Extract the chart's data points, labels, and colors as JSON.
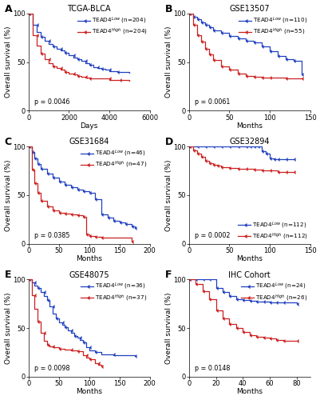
{
  "panels": [
    {
      "label": "A",
      "title": "TCGA-BLCA",
      "xlabel": "Days",
      "ylabel": "Overall survival (%)",
      "xlim": [
        0,
        6000
      ],
      "xticks": [
        0,
        2000,
        4000,
        6000
      ],
      "ylim": [
        0,
        100
      ],
      "yticks": [
        0,
        50,
        100
      ],
      "pvalue": "p = 0.0046",
      "low_label": "TEAD4$^{Low}$ (n=204)",
      "high_label": "TEAD4$^{High}$ (n=204)",
      "low_color": "#2040c0",
      "high_color": "#cc2020",
      "legend_loc": "upper right",
      "legend_bbox": null,
      "low_x": [
        0,
        200,
        400,
        600,
        800,
        1000,
        1200,
        1400,
        1600,
        1800,
        2000,
        2200,
        2400,
        2600,
        2800,
        3000,
        3200,
        3400,
        3600,
        3800,
        4000,
        4400,
        5000
      ],
      "low_y": [
        100,
        88,
        81,
        76,
        72,
        69,
        66,
        64,
        62,
        60,
        57,
        55,
        53,
        51,
        49,
        47,
        45,
        44,
        43,
        42,
        41,
        40,
        39
      ],
      "high_x": [
        0,
        200,
        400,
        600,
        800,
        1000,
        1200,
        1400,
        1600,
        1800,
        2000,
        2200,
        2400,
        2600,
        2800,
        3000,
        3500,
        4000,
        4500,
        5000
      ],
      "high_y": [
        100,
        78,
        67,
        59,
        53,
        49,
        46,
        44,
        42,
        40,
        38,
        37,
        36,
        35,
        34,
        33,
        33,
        32,
        32,
        31
      ]
    },
    {
      "label": "B",
      "title": "GSE13507",
      "xlabel": "Months",
      "ylabel": "Overall survival (%)",
      "xlim": [
        0,
        150
      ],
      "xticks": [
        0,
        50,
        100,
        150
      ],
      "ylim": [
        0,
        100
      ],
      "yticks": [
        0,
        50,
        100
      ],
      "pvalue": "p = 0.0061",
      "low_label": "TEAD4$^{Low}$ (n=110)",
      "high_label": "TEAD4$^{High}$ (n=55)",
      "low_color": "#2040c0",
      "high_color": "#cc2020",
      "legend_loc": "upper right",
      "legend_bbox": null,
      "low_x": [
        0,
        5,
        10,
        15,
        20,
        25,
        30,
        40,
        50,
        60,
        70,
        80,
        90,
        100,
        110,
        120,
        130,
        140
      ],
      "low_y": [
        100,
        97,
        94,
        91,
        88,
        86,
        83,
        80,
        77,
        74,
        72,
        70,
        66,
        61,
        56,
        53,
        51,
        37
      ],
      "high_x": [
        0,
        5,
        10,
        15,
        20,
        25,
        30,
        40,
        50,
        60,
        70,
        80,
        90,
        100,
        120,
        140
      ],
      "high_y": [
        100,
        88,
        78,
        71,
        64,
        58,
        52,
        46,
        42,
        38,
        36,
        35,
        34,
        34,
        33,
        33
      ]
    },
    {
      "label": "C",
      "title": "GSE31684",
      "xlabel": "Months",
      "ylabel": "Overall survival (%)",
      "xlim": [
        0,
        200
      ],
      "xticks": [
        0,
        50,
        100,
        150,
        200
      ],
      "ylim": [
        0,
        100
      ],
      "yticks": [
        0,
        50,
        100
      ],
      "pvalue": "p = 0.0385",
      "low_label": "TEAD4$^{Low}$ (n=46)",
      "high_label": "TEAD4$^{High}$ (n=47)",
      "low_color": "#2040c0",
      "high_color": "#cc2020",
      "legend_loc": "upper right",
      "legend_bbox": null,
      "low_x": [
        0,
        5,
        10,
        15,
        20,
        30,
        40,
        50,
        60,
        70,
        80,
        90,
        100,
        110,
        120,
        130,
        140,
        150,
        160,
        170,
        175
      ],
      "low_y": [
        100,
        94,
        88,
        82,
        77,
        72,
        68,
        64,
        61,
        58,
        56,
        54,
        52,
        46,
        30,
        27,
        24,
        22,
        20,
        18,
        16
      ],
      "high_x": [
        0,
        5,
        10,
        15,
        20,
        30,
        40,
        50,
        60,
        70,
        80,
        90,
        95,
        100,
        110,
        120,
        170
      ],
      "high_y": [
        100,
        76,
        62,
        52,
        44,
        38,
        34,
        32,
        31,
        30,
        29,
        28,
        10,
        8,
        7,
        6,
        2
      ]
    },
    {
      "label": "D",
      "title": "GSE32894",
      "xlabel": "Months",
      "ylabel": "Overall survival (%)",
      "xlim": [
        0,
        150
      ],
      "xticks": [
        0,
        50,
        100,
        150
      ],
      "ylim": [
        0,
        100
      ],
      "yticks": [
        0,
        50,
        100
      ],
      "pvalue": "p = 0.0002",
      "low_label": "TEAD4$^{Low}$ (n=112)",
      "high_label": "TEAD4$^{High}$ (n=112)",
      "low_color": "#2040c0",
      "high_color": "#cc2020",
      "legend_loc": "lower right",
      "legend_bbox": null,
      "low_x": [
        0,
        10,
        20,
        30,
        40,
        50,
        60,
        70,
        75,
        80,
        85,
        90,
        95,
        100,
        105,
        110,
        120,
        130
      ],
      "low_y": [
        100,
        100,
        100,
        100,
        100,
        100,
        100,
        100,
        100,
        100,
        100,
        95,
        93,
        88,
        87,
        87,
        87,
        87
      ],
      "high_x": [
        0,
        5,
        10,
        15,
        20,
        25,
        30,
        35,
        40,
        50,
        60,
        70,
        80,
        90,
        100,
        110,
        120,
        130
      ],
      "high_y": [
        100,
        96,
        93,
        89,
        85,
        83,
        81,
        80,
        79,
        78,
        77,
        77,
        76,
        75,
        75,
        74,
        74,
        74
      ]
    },
    {
      "label": "E",
      "title": "GSE48075",
      "xlabel": "Months",
      "ylabel": "Overall survival (%)",
      "xlim": [
        0,
        200
      ],
      "xticks": [
        0,
        50,
        100,
        150,
        200
      ],
      "ylim": [
        0,
        100
      ],
      "yticks": [
        0,
        50,
        100
      ],
      "pvalue": "p = 0.0098",
      "low_label": "TEAD4$^{Low}$ (n=36)",
      "high_label": "TEAD4$^{High}$ (n=37)",
      "low_color": "#2040c0",
      "high_color": "#cc2020",
      "legend_loc": "upper right",
      "legend_bbox": null,
      "low_x": [
        0,
        5,
        10,
        15,
        20,
        25,
        30,
        35,
        40,
        45,
        50,
        55,
        60,
        65,
        70,
        75,
        80,
        85,
        90,
        95,
        100,
        110,
        120,
        140,
        175
      ],
      "low_y": [
        100,
        97,
        94,
        91,
        87,
        83,
        79,
        72,
        65,
        60,
        56,
        53,
        51,
        48,
        45,
        42,
        40,
        38,
        35,
        30,
        27,
        25,
        23,
        22,
        21
      ],
      "high_x": [
        0,
        5,
        10,
        15,
        20,
        25,
        30,
        35,
        40,
        50,
        60,
        70,
        80,
        90,
        95,
        100,
        110,
        115,
        120
      ],
      "high_y": [
        100,
        84,
        70,
        57,
        45,
        37,
        33,
        31,
        30,
        29,
        28,
        27,
        26,
        22,
        20,
        18,
        14,
        12,
        11
      ]
    },
    {
      "label": "F",
      "title": "IHC Cohort",
      "xlabel": "Months",
      "ylabel": "Overall survival (%)",
      "xlim": [
        0,
        90
      ],
      "xticks": [
        0,
        20,
        40,
        60,
        80
      ],
      "ylim": [
        0,
        100
      ],
      "yticks": [
        0,
        50,
        100
      ],
      "pvalue": "p = 0.0148",
      "low_label": "TEAD4$^{Low}$ (n=24)",
      "high_label": "TEAD4$^{High}$ (n=26)",
      "low_color": "#2040c0",
      "high_color": "#cc2020",
      "legend_loc": "upper right",
      "legend_bbox": null,
      "low_x": [
        0,
        5,
        10,
        15,
        20,
        25,
        30,
        35,
        40,
        45,
        50,
        55,
        60,
        65,
        70,
        80
      ],
      "low_y": [
        100,
        100,
        100,
        100,
        91,
        87,
        83,
        80,
        79,
        78,
        77,
        77,
        76,
        76,
        76,
        75
      ],
      "high_x": [
        0,
        5,
        10,
        15,
        20,
        25,
        30,
        35,
        40,
        45,
        50,
        55,
        60,
        65,
        70,
        80
      ],
      "high_y": [
        100,
        95,
        88,
        80,
        68,
        60,
        54,
        50,
        46,
        43,
        41,
        40,
        39,
        38,
        37,
        37
      ]
    }
  ],
  "figure_bg": "#ffffff",
  "tick_fontsize": 6.0,
  "label_fontsize": 6.5,
  "title_fontsize": 7.0,
  "legend_fontsize": 5.2,
  "pvalue_fontsize": 5.8,
  "linewidth": 0.9
}
